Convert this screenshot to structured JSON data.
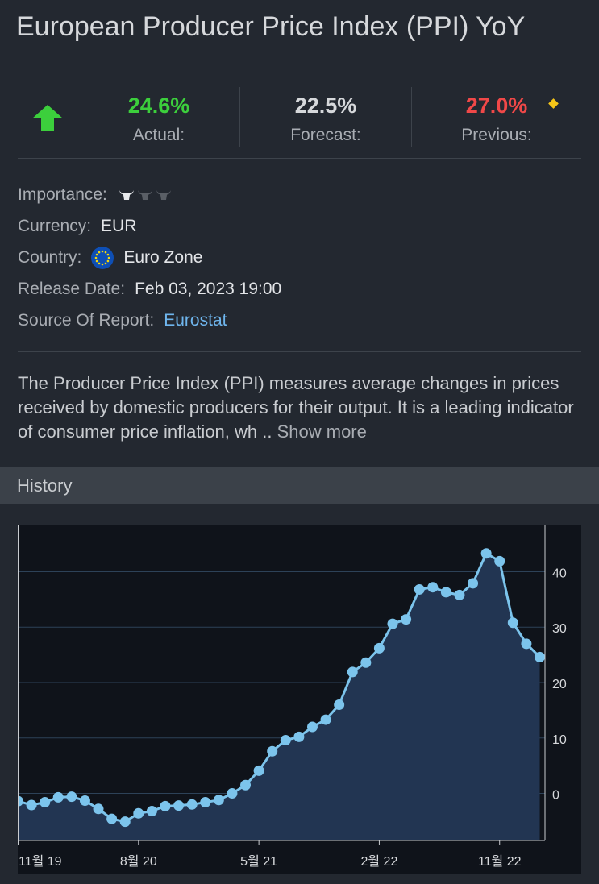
{
  "title": "European Producer Price Index (PPI) YoY",
  "stats": {
    "actual": {
      "value": "24.6%",
      "label": "Actual:",
      "color": "#3ccf3c"
    },
    "forecast": {
      "value": "22.5%",
      "label": "Forecast:",
      "color": "#d6d8db"
    },
    "previous": {
      "value": "27.0%",
      "label": "Previous:",
      "color": "#f04848"
    }
  },
  "info": {
    "importance_label": "Importance:",
    "importance_level": 1,
    "importance_max": 3,
    "currency_label": "Currency:",
    "currency_value": "EUR",
    "country_label": "Country:",
    "country_value": "Euro Zone",
    "release_label": "Release Date:",
    "release_value": "Feb 03, 2023 19:00",
    "source_label": "Source Of Report:",
    "source_value": "Eurostat"
  },
  "description": {
    "text": "The Producer Price Index (PPI) measures average changes in prices received by domestic producers for their output. It is a leading indicator of consumer price inflation, wh .. ",
    "show_more": "Show more"
  },
  "history": {
    "label": "History"
  },
  "chart_data": {
    "type": "area",
    "x_tick_labels": [
      "11월 19",
      "8월 20",
      "5월 21",
      "2월 22",
      "11월 22"
    ],
    "x_tick_indices": [
      0,
      9,
      18,
      27,
      36
    ],
    "y_ticks": [
      0,
      10,
      20,
      30,
      40
    ],
    "ylim": [
      -8.5,
      48.5
    ],
    "values": [
      -1.4,
      -2.1,
      -1.6,
      -0.7,
      -0.6,
      -1.3,
      -2.8,
      -4.6,
      -5.1,
      -3.6,
      -3.2,
      -2.3,
      -2.2,
      -2.0,
      -1.6,
      -1.2,
      0.0,
      1.5,
      4.1,
      7.6,
      9.6,
      10.2,
      12.0,
      13.3,
      16.0,
      21.9,
      23.6,
      26.2,
      30.6,
      31.4,
      36.8,
      37.2,
      36.3,
      35.8,
      37.9,
      43.3,
      41.9,
      30.8,
      27.0,
      24.6
    ],
    "line_color": "#7cc4ec",
    "fill_color": "#223552"
  }
}
